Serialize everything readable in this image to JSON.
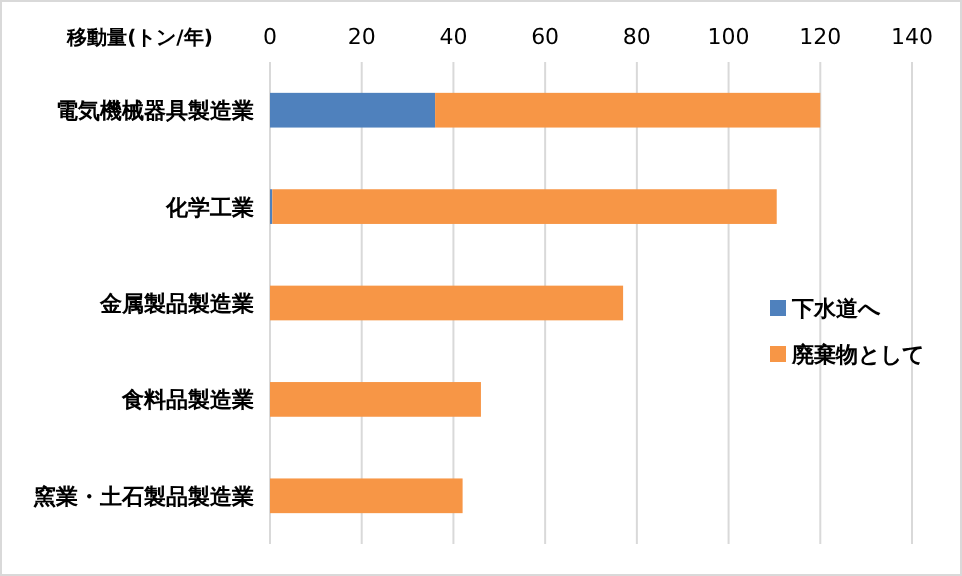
{
  "chart_data": {
    "type": "bar",
    "orientation": "horizontal",
    "stacked": true,
    "xlabel": "移動量(トン/年)",
    "categories": [
      "電気機械器具製造業",
      "化学工業",
      "金属製品製造業",
      "食料品製造業",
      "窯業・土石製品製造業"
    ],
    "series": [
      {
        "name": "下水道へ",
        "color": "#4f81bd",
        "values": [
          36,
          0.5,
          0,
          0,
          0
        ]
      },
      {
        "name": "廃棄物として",
        "color": "#f79646",
        "values": [
          84,
          110,
          77,
          46,
          42
        ]
      }
    ],
    "xlim": [
      0,
      140
    ],
    "xticks": [
      0,
      20,
      40,
      60,
      80,
      100,
      120,
      140
    ],
    "grid": "x",
    "legend": "right"
  }
}
